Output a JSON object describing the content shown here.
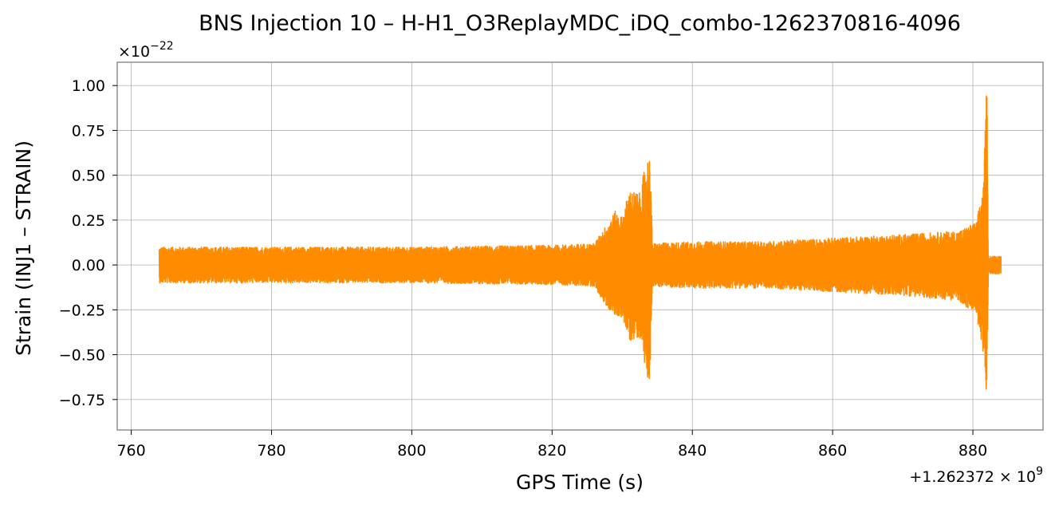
{
  "chart_data": {
    "type": "line",
    "title": "BNS Injection 10 – H-H1_O3ReplayMDC_iDQ_combo-1262370816-4096",
    "xlabel": "GPS Time (s)",
    "ylabel": "Strain (INJ1 – STRAIN)",
    "x_offset_text": {
      "base": "+1.262372 × 10",
      "exponent": "9"
    },
    "y_scale_text": {
      "base": "×10",
      "exponent": "−22"
    },
    "xlim": [
      758,
      890
    ],
    "ylim": [
      -0.92,
      1.13
    ],
    "xticks": [
      760,
      780,
      800,
      820,
      840,
      860,
      880
    ],
    "xtick_labels": [
      "760",
      "780",
      "800",
      "820",
      "840",
      "860",
      "880"
    ],
    "yticks": [
      -0.75,
      -0.5,
      -0.25,
      0.0,
      0.25,
      0.5,
      0.75,
      1.0
    ],
    "ytick_labels": [
      "−0.75",
      "−0.50",
      "−0.25",
      "0.00",
      "0.25",
      "0.50",
      "0.75",
      "1.00"
    ],
    "grid": true,
    "series_color": "#ff8c00",
    "series": [
      {
        "x_range": [
          764,
          884
        ],
        "envelope_upper": [
          [
            764,
            0.1
          ],
          [
            780,
            0.1
          ],
          [
            800,
            0.1
          ],
          [
            820,
            0.11
          ],
          [
            826,
            0.12
          ],
          [
            827.5,
            0.21
          ],
          [
            829,
            0.3
          ],
          [
            830,
            0.27
          ],
          [
            831,
            0.42
          ],
          [
            832.5,
            0.4
          ],
          [
            833.5,
            0.6
          ],
          [
            834,
            0.61
          ],
          [
            834.3,
            0.12
          ],
          [
            840,
            0.13
          ],
          [
            850,
            0.13
          ],
          [
            860,
            0.15
          ],
          [
            870,
            0.17
          ],
          [
            878,
            0.19
          ],
          [
            880.5,
            0.24
          ],
          [
            881.5,
            0.45
          ],
          [
            882,
            1.04
          ],
          [
            882.2,
            0.05
          ],
          [
            884,
            0.05
          ]
        ],
        "envelope_lower": [
          [
            764,
            -0.1
          ],
          [
            780,
            -0.1
          ],
          [
            800,
            -0.1
          ],
          [
            820,
            -0.11
          ],
          [
            826,
            -0.12
          ],
          [
            827.5,
            -0.22
          ],
          [
            829,
            -0.29
          ],
          [
            830,
            -0.29
          ],
          [
            831,
            -0.43
          ],
          [
            832.5,
            -0.4
          ],
          [
            833.5,
            -0.62
          ],
          [
            834,
            -0.64
          ],
          [
            834.3,
            -0.12
          ],
          [
            840,
            -0.13
          ],
          [
            850,
            -0.13
          ],
          [
            860,
            -0.15
          ],
          [
            870,
            -0.17
          ],
          [
            878,
            -0.2
          ],
          [
            880.5,
            -0.28
          ],
          [
            881.5,
            -0.5
          ],
          [
            882,
            -0.83
          ],
          [
            882.2,
            -0.05
          ],
          [
            884,
            -0.05
          ]
        ]
      }
    ]
  }
}
